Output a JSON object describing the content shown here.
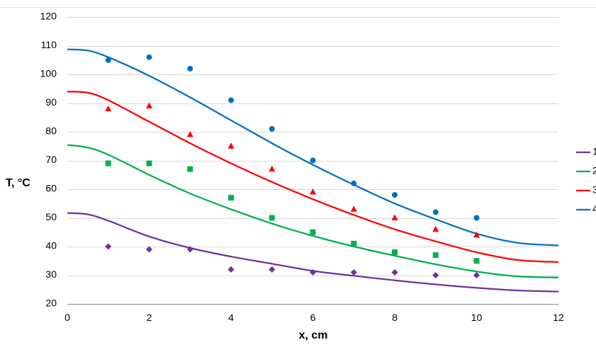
{
  "chart_data": {
    "type": "scatter",
    "title": "",
    "xlabel": "x, cm",
    "ylabel": "T, °C",
    "xlim": [
      0,
      12
    ],
    "ylim": [
      20,
      120
    ],
    "x_ticks": [
      0,
      2,
      4,
      6,
      8,
      10,
      12
    ],
    "y_ticks": [
      20,
      30,
      40,
      50,
      60,
      70,
      80,
      90,
      100,
      110,
      120
    ],
    "grid": "horizontal",
    "legend_position": "right",
    "series": [
      {
        "name": "1",
        "color": "#7030a0",
        "marker": "diamond",
        "points": {
          "x": [
            1,
            2,
            3,
            4,
            5,
            6,
            7,
            8,
            9,
            10
          ],
          "y": [
            40,
            39,
            39,
            32,
            32,
            31,
            31,
            31,
            30,
            30
          ]
        },
        "curve": {
          "x": [
            0,
            0.5,
            1,
            2,
            3,
            4,
            5,
            6,
            7,
            8,
            9,
            10,
            11,
            12
          ],
          "y": [
            51.7,
            51.2,
            49,
            43.5,
            39.5,
            36.5,
            34,
            31.5,
            29.8,
            28.2,
            26.8,
            25.6,
            24.7,
            24.3
          ]
        }
      },
      {
        "name": "2",
        "color": "#00b050",
        "marker": "square",
        "points": {
          "x": [
            1,
            2,
            3,
            4,
            5,
            6,
            7,
            8,
            9,
            10
          ],
          "y": [
            69,
            69,
            67,
            57,
            50,
            45,
            41,
            38,
            37,
            35
          ]
        },
        "curve": {
          "x": [
            0,
            0.5,
            1,
            2,
            3,
            4,
            5,
            6,
            7,
            8,
            9,
            10,
            11,
            12
          ],
          "y": [
            75.4,
            74.5,
            72,
            65,
            58.5,
            53,
            48,
            43.7,
            40,
            36.8,
            33.8,
            31.3,
            29.6,
            29.2
          ]
        }
      },
      {
        "name": "3",
        "color": "#ff0000",
        "marker": "triangle",
        "points": {
          "x": [
            1,
            2,
            3,
            4,
            5,
            6,
            7,
            8,
            9,
            10
          ],
          "y": [
            88,
            89,
            79,
            75,
            67,
            59,
            53,
            50,
            46,
            44
          ]
        },
        "curve": {
          "x": [
            0,
            0.5,
            1,
            2,
            3,
            4,
            5,
            6,
            7,
            8,
            9,
            10,
            11,
            12
          ],
          "y": [
            94,
            93.6,
            91,
            83.5,
            76,
            69,
            62.5,
            56.5,
            51,
            46,
            41.8,
            38,
            35.3,
            34.6
          ]
        }
      },
      {
        "name": "4",
        "color": "#0070c0",
        "marker": "circle",
        "points": {
          "x": [
            1,
            2,
            3,
            4,
            5,
            6,
            7,
            8,
            9,
            10
          ],
          "y": [
            105,
            106,
            102,
            91,
            81,
            70,
            62,
            58,
            52,
            50
          ]
        },
        "curve": {
          "x": [
            0,
            0.5,
            1,
            2,
            3,
            4,
            5,
            6,
            7,
            8,
            9,
            10,
            11,
            12
          ],
          "y": [
            108.7,
            108.3,
            106,
            99.5,
            92,
            84,
            76,
            68.5,
            61.5,
            55,
            49.5,
            44.5,
            41.3,
            40.4
          ]
        }
      }
    ]
  }
}
